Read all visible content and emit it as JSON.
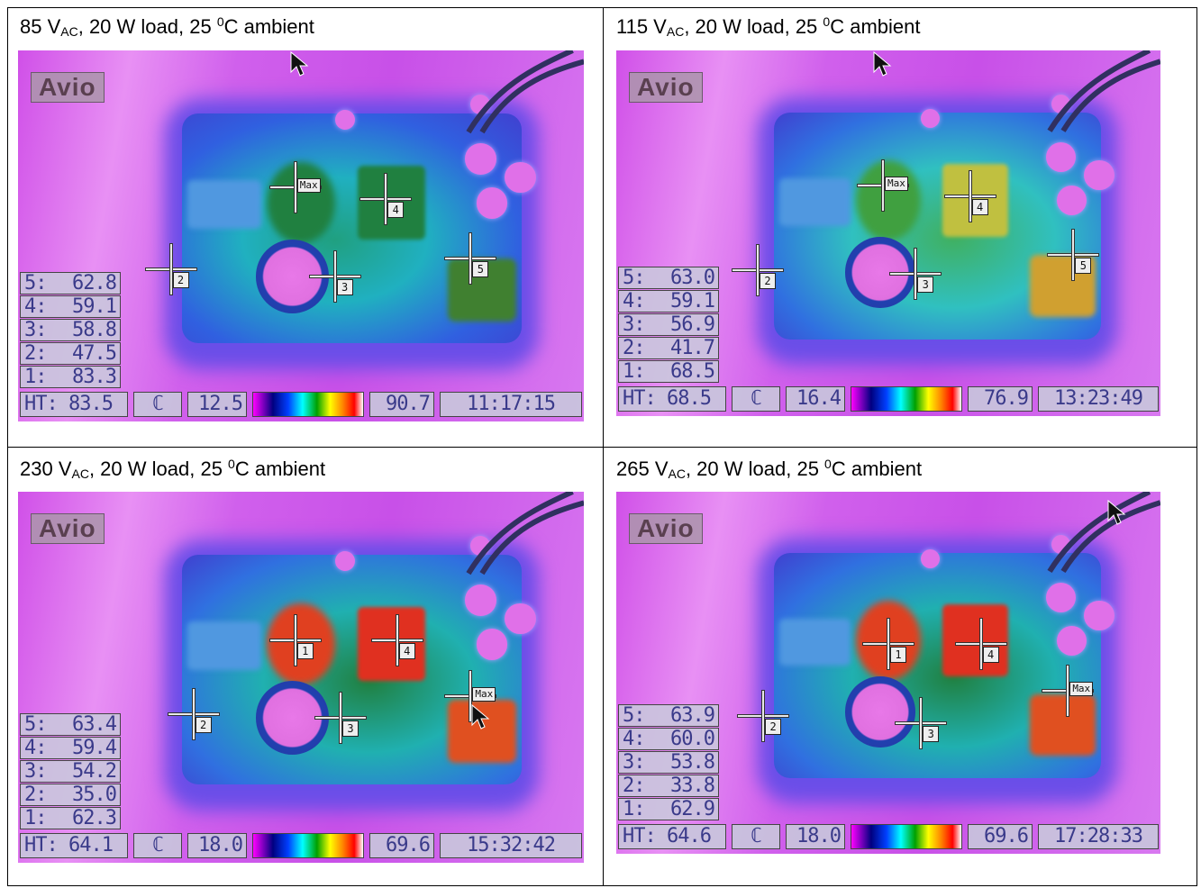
{
  "panels": [
    {
      "caption": {
        "voltage": "85 V",
        "sub": "AC",
        "rest": ", 20 W load, 25 ",
        "sup": "0",
        "tail": "C ambient"
      },
      "readings": [
        {
          "label": "5:",
          "value": "62.8"
        },
        {
          "label": "4:",
          "value": "59.1"
        },
        {
          "label": "3:",
          "value": "58.8"
        },
        {
          "label": "2:",
          "value": "47.5"
        },
        {
          "label": "1:",
          "value": "83.3"
        }
      ],
      "status": {
        "ht_label": "HT:",
        "ht_value": "83.5",
        "min": "12.5",
        "max": "90.7",
        "time": "11:17:15"
      },
      "logo": "Avio",
      "max_label": "Max"
    },
    {
      "caption": {
        "voltage": "115 V",
        "sub": "AC",
        "rest": ", 20 W load, 25 ",
        "sup": "0",
        "tail": "C ambient"
      },
      "readings": [
        {
          "label": "5:",
          "value": "63.0"
        },
        {
          "label": "4:",
          "value": "59.1"
        },
        {
          "label": "3:",
          "value": "56.9"
        },
        {
          "label": "2:",
          "value": "41.7"
        },
        {
          "label": "1:",
          "value": "68.5"
        }
      ],
      "status": {
        "ht_label": "HT:",
        "ht_value": "68.5",
        "min": "16.4",
        "max": "76.9",
        "time": "13:23:49"
      },
      "logo": "Avio",
      "max_label": "Max"
    },
    {
      "caption": {
        "voltage": "230 V",
        "sub": "AC",
        "rest": ", 20 W load, 25 ",
        "sup": "0",
        "tail": "C ambient"
      },
      "readings": [
        {
          "label": "5:",
          "value": "63.4"
        },
        {
          "label": "4:",
          "value": "59.4"
        },
        {
          "label": "3:",
          "value": "54.2"
        },
        {
          "label": "2:",
          "value": "35.0"
        },
        {
          "label": "1:",
          "value": "62.3"
        }
      ],
      "status": {
        "ht_label": "HT:",
        "ht_value": "64.1",
        "min": "18.0",
        "max": "69.6",
        "time": "15:32:42"
      },
      "logo": "Avio",
      "max_label": "Max"
    },
    {
      "caption": {
        "voltage": "265 V",
        "sub": "AC",
        "rest": ", 20 W load, 25 ",
        "sup": "0",
        "tail": "C ambient"
      },
      "readings": [
        {
          "label": "5:",
          "value": "63.9"
        },
        {
          "label": "4:",
          "value": "60.0"
        },
        {
          "label": "3:",
          "value": "53.8"
        },
        {
          "label": "2:",
          "value": "33.8"
        },
        {
          "label": "1:",
          "value": "62.9"
        }
      ],
      "status": {
        "ht_label": "HT:",
        "ht_value": "64.6",
        "min": "18.0",
        "max": "69.6",
        "time": "17:28:33"
      },
      "logo": "Avio",
      "max_label": "Max"
    }
  ],
  "colors": {
    "background": "#e070f0",
    "board": "#3050e0",
    "hot": "#e03020",
    "warm": "#e0d040",
    "cool": "#20c0d0"
  }
}
